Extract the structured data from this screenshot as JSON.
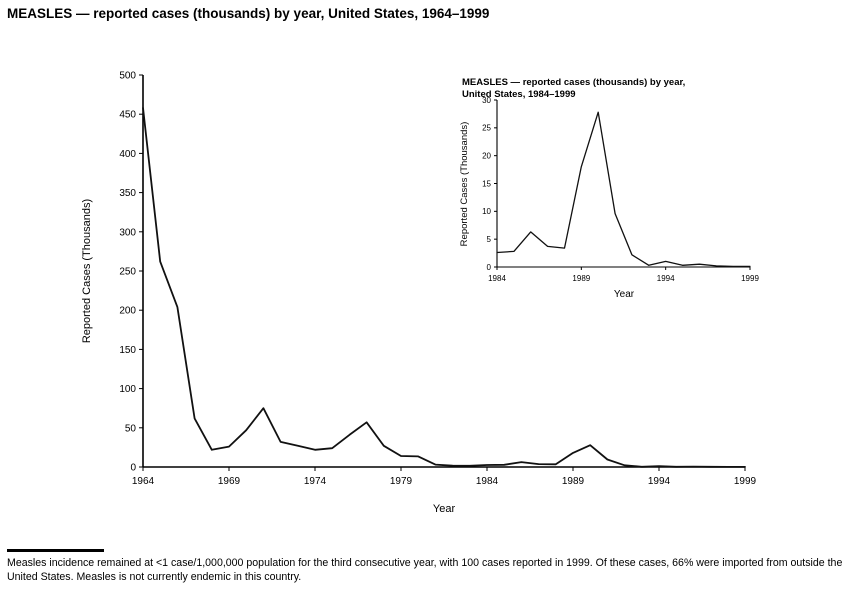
{
  "page": {
    "footnote": "Measles incidence remained at <1 case/1,000,000 population for the third consecutive year, with 100 cases reported in 1999. Of these cases, 66% were imported from outside the United States. Measles is not currently endemic in this country."
  },
  "line_color": "#111111",
  "chart_data": [
    {
      "id": "main",
      "type": "line",
      "title": "MEASLES — reported cases (thousands) by year, United States, 1964–1999",
      "xlabel": "Year",
      "ylabel": "Reported Cases (Thousands)",
      "xlim": [
        1964,
        1999
      ],
      "ylim": [
        0,
        500
      ],
      "x_ticks": [
        1964,
        1969,
        1974,
        1979,
        1984,
        1989,
        1994,
        1999
      ],
      "y_ticks": [
        0,
        50,
        100,
        150,
        200,
        250,
        300,
        350,
        400,
        450,
        500
      ],
      "grid": false,
      "legend": null,
      "x": [
        1964,
        1965,
        1966,
        1967,
        1968,
        1969,
        1970,
        1971,
        1972,
        1973,
        1974,
        1975,
        1976,
        1977,
        1978,
        1979,
        1980,
        1981,
        1982,
        1983,
        1984,
        1985,
        1986,
        1987,
        1988,
        1989,
        1990,
        1991,
        1992,
        1993,
        1994,
        1995,
        1996,
        1997,
        1998,
        1999
      ],
      "values": [
        458,
        262,
        204,
        62,
        22,
        26,
        47,
        75,
        32,
        27,
        22,
        24,
        41,
        57,
        27,
        14,
        13.5,
        3.1,
        1.7,
        1.5,
        2.6,
        2.8,
        6.3,
        3.7,
        3.4,
        18,
        27.8,
        9.6,
        2.2,
        0.3,
        1,
        0.3,
        0.5,
        0.2,
        0.1,
        0.1
      ]
    },
    {
      "id": "inset",
      "type": "line",
      "title_lines": [
        "MEASLES — reported cases (thousands) by year,",
        "United States, 1984–1999"
      ],
      "xlabel": "Year",
      "ylabel": "Reported Cases (Thousands)",
      "xlim": [
        1984,
        1999
      ],
      "ylim": [
        0,
        30
      ],
      "x_ticks": [
        1984,
        1989,
        1994,
        1999
      ],
      "y_ticks": [
        0,
        5,
        10,
        15,
        20,
        25,
        30
      ],
      "grid": false,
      "legend": null,
      "x": [
        1984,
        1985,
        1986,
        1987,
        1988,
        1989,
        1990,
        1991,
        1992,
        1993,
        1994,
        1995,
        1996,
        1997,
        1998,
        1999
      ],
      "values": [
        2.6,
        2.8,
        6.3,
        3.7,
        3.4,
        18,
        27.8,
        9.6,
        2.2,
        0.3,
        1,
        0.3,
        0.5,
        0.2,
        0.1,
        0.1
      ]
    }
  ]
}
